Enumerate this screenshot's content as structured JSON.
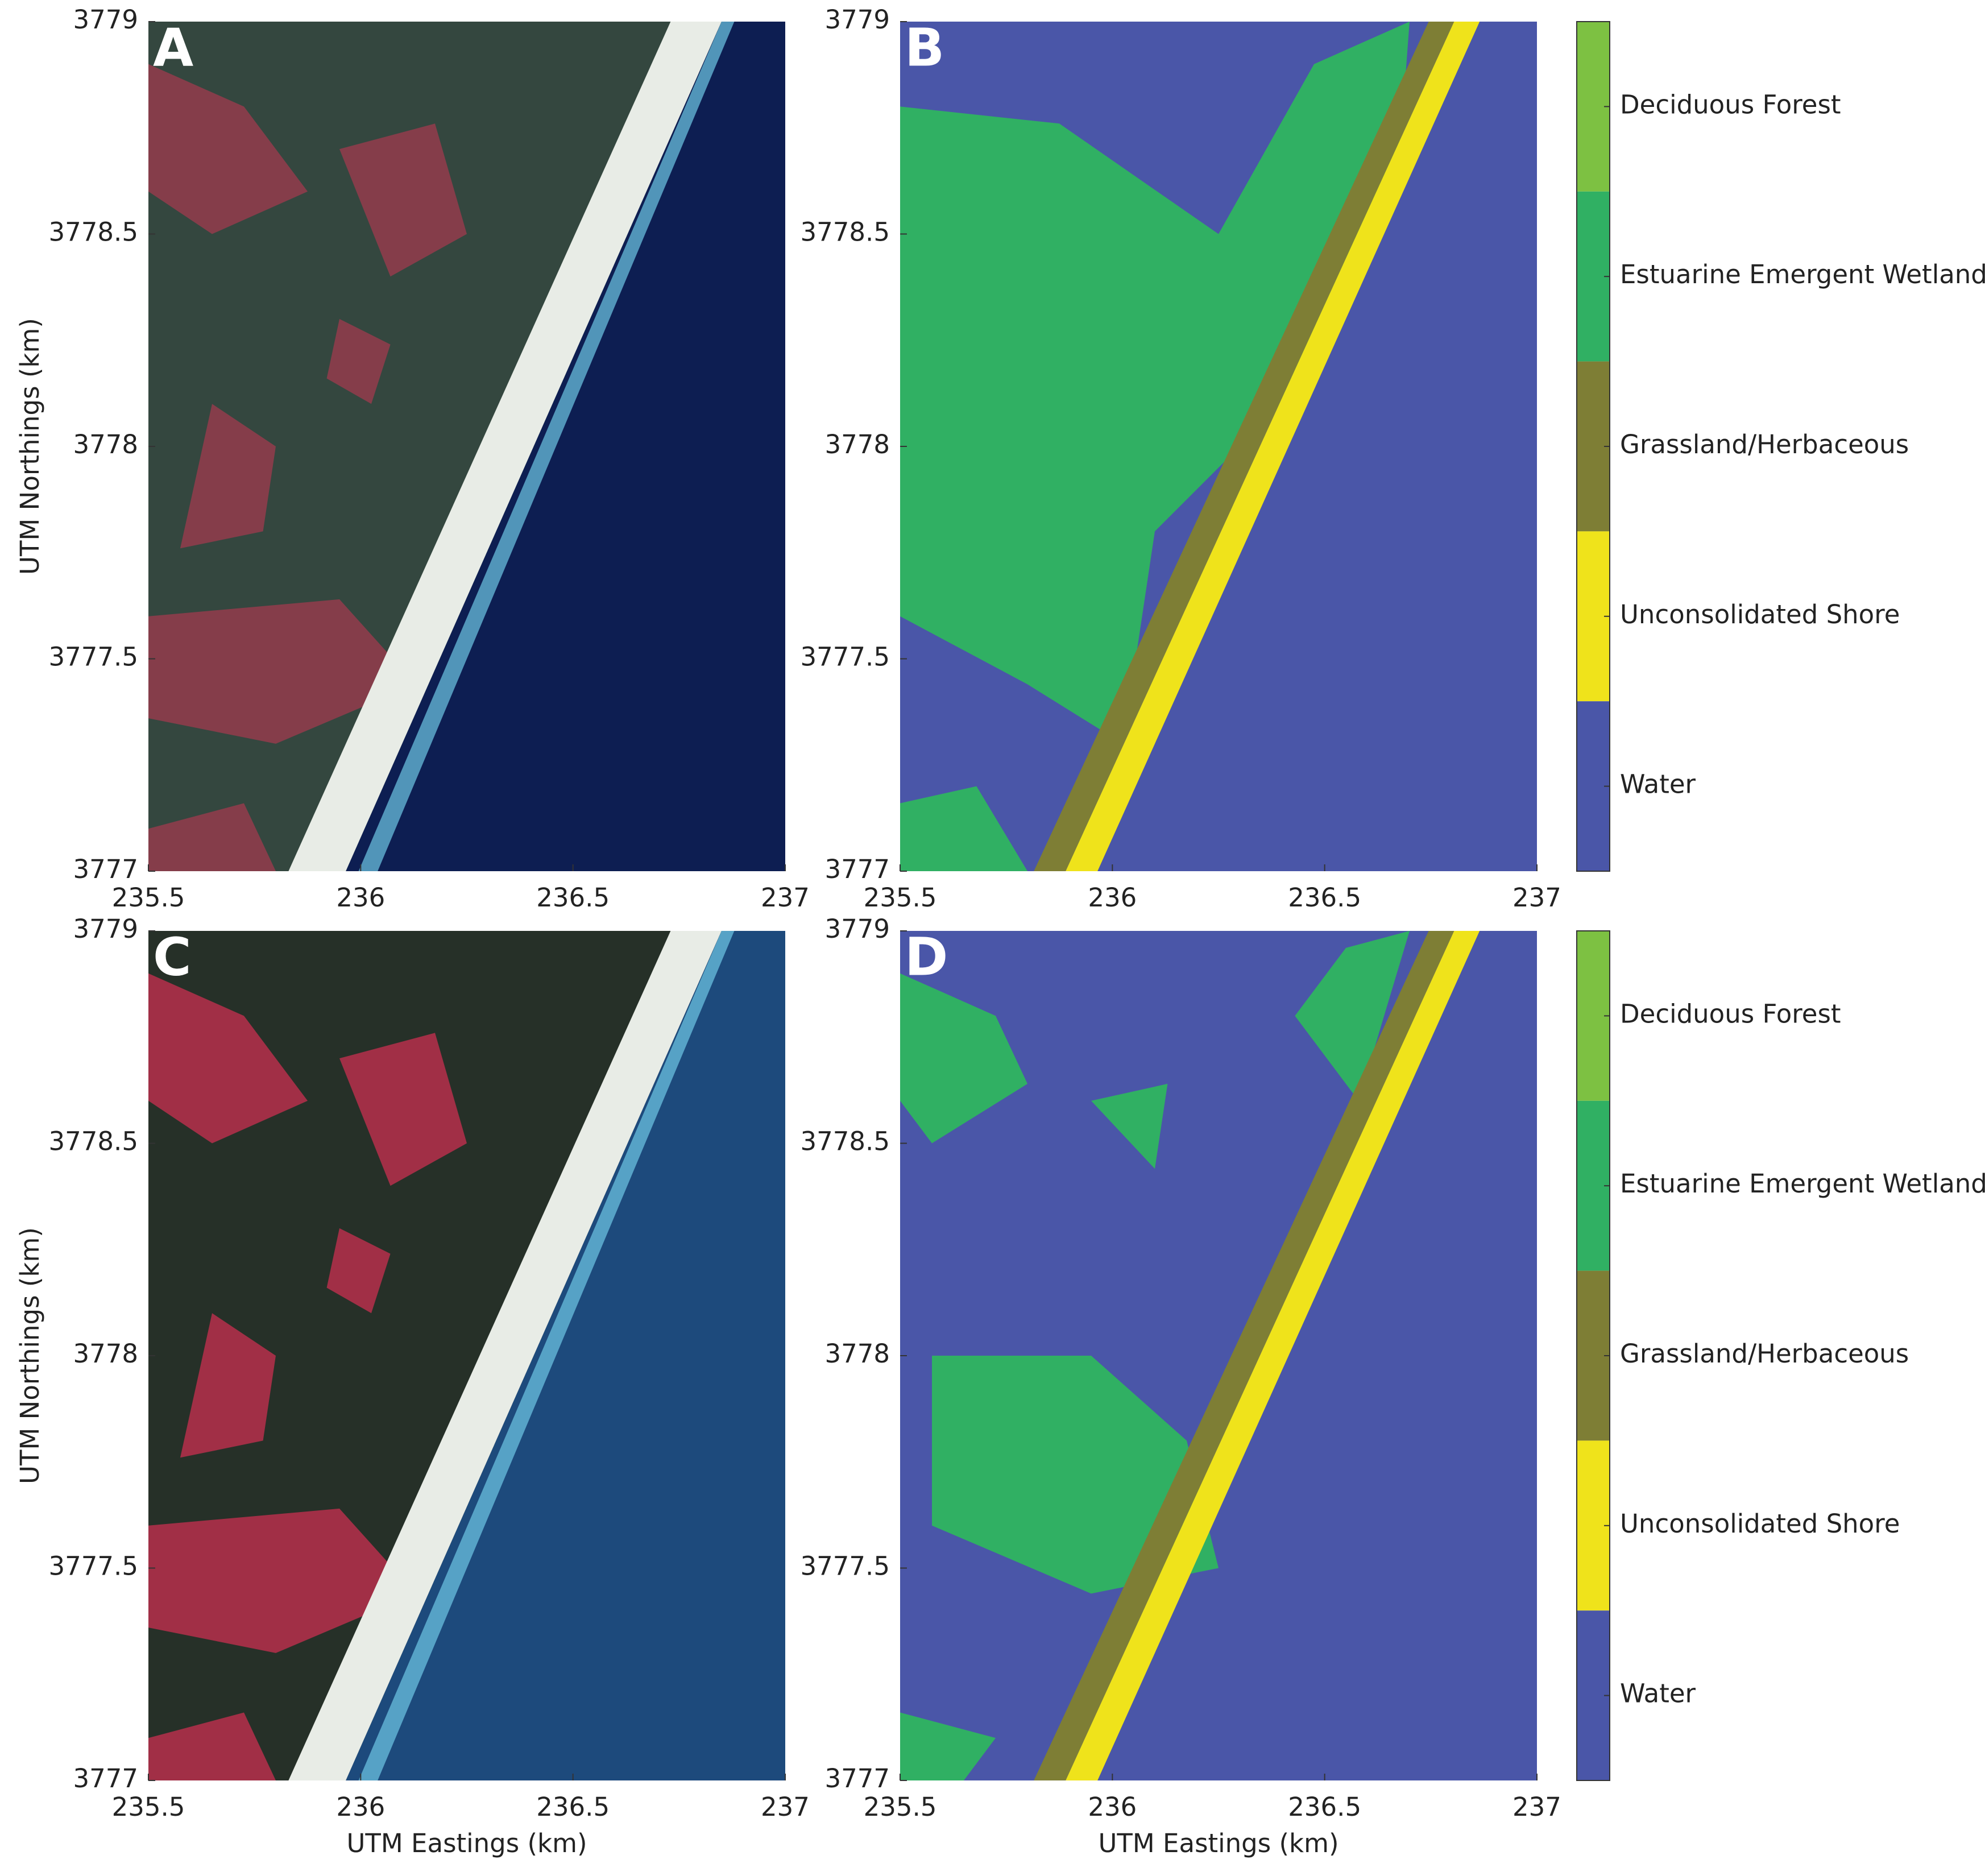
{
  "chart_data": [
    {
      "type": "image",
      "label": "A",
      "xlim": [
        235.5,
        237
      ],
      "ylim": [
        3777,
        3779
      ],
      "xticks": [
        235.5,
        236,
        236.5,
        237
      ],
      "yticks": [
        3777,
        3777.5,
        3778,
        3778.5,
        3779
      ],
      "ylabel": "UTM Northings (km)"
    },
    {
      "type": "classmap",
      "label": "B",
      "xlim": [
        235.5,
        237
      ],
      "ylim": [
        3777,
        3779
      ],
      "xticks": [
        235.5,
        236,
        236.5,
        237
      ],
      "yticks": [
        3777,
        3777.5,
        3778,
        3778.5,
        3779
      ],
      "colorbar": {
        "categories": [
          "Deciduous Forest",
          "Estuarine Emergent Wetland",
          "Grassland/Herbaceous",
          "Unconsolidated Shore",
          "Water"
        ],
        "colors": [
          "#7dc142",
          "#30b063",
          "#7e7e35",
          "#efe31b",
          "#4a56a8"
        ]
      }
    },
    {
      "type": "image",
      "label": "C",
      "xlim": [
        235.5,
        237
      ],
      "ylim": [
        3777,
        3779
      ],
      "xticks": [
        235.5,
        236,
        236.5,
        237
      ],
      "yticks": [
        3777,
        3777.5,
        3778,
        3778.5,
        3779
      ],
      "xlabel": "UTM Eastings (km)",
      "ylabel": "UTM Northings (km)"
    },
    {
      "type": "classmap",
      "label": "D",
      "xlim": [
        235.5,
        237
      ],
      "ylim": [
        3777,
        3779
      ],
      "xticks": [
        235.5,
        236,
        236.5,
        237
      ],
      "yticks": [
        3777,
        3777.5,
        3778,
        3778.5,
        3779
      ],
      "xlabel": "UTM Eastings (km)",
      "colorbar": {
        "categories": [
          "Deciduous Forest",
          "Estuarine Emergent Wetland",
          "Grassland/Herbaceous",
          "Unconsolidated Shore",
          "Water"
        ],
        "colors": [
          "#7dc142",
          "#30b063",
          "#7e7e35",
          "#efe31b",
          "#4a56a8"
        ]
      }
    }
  ]
}
